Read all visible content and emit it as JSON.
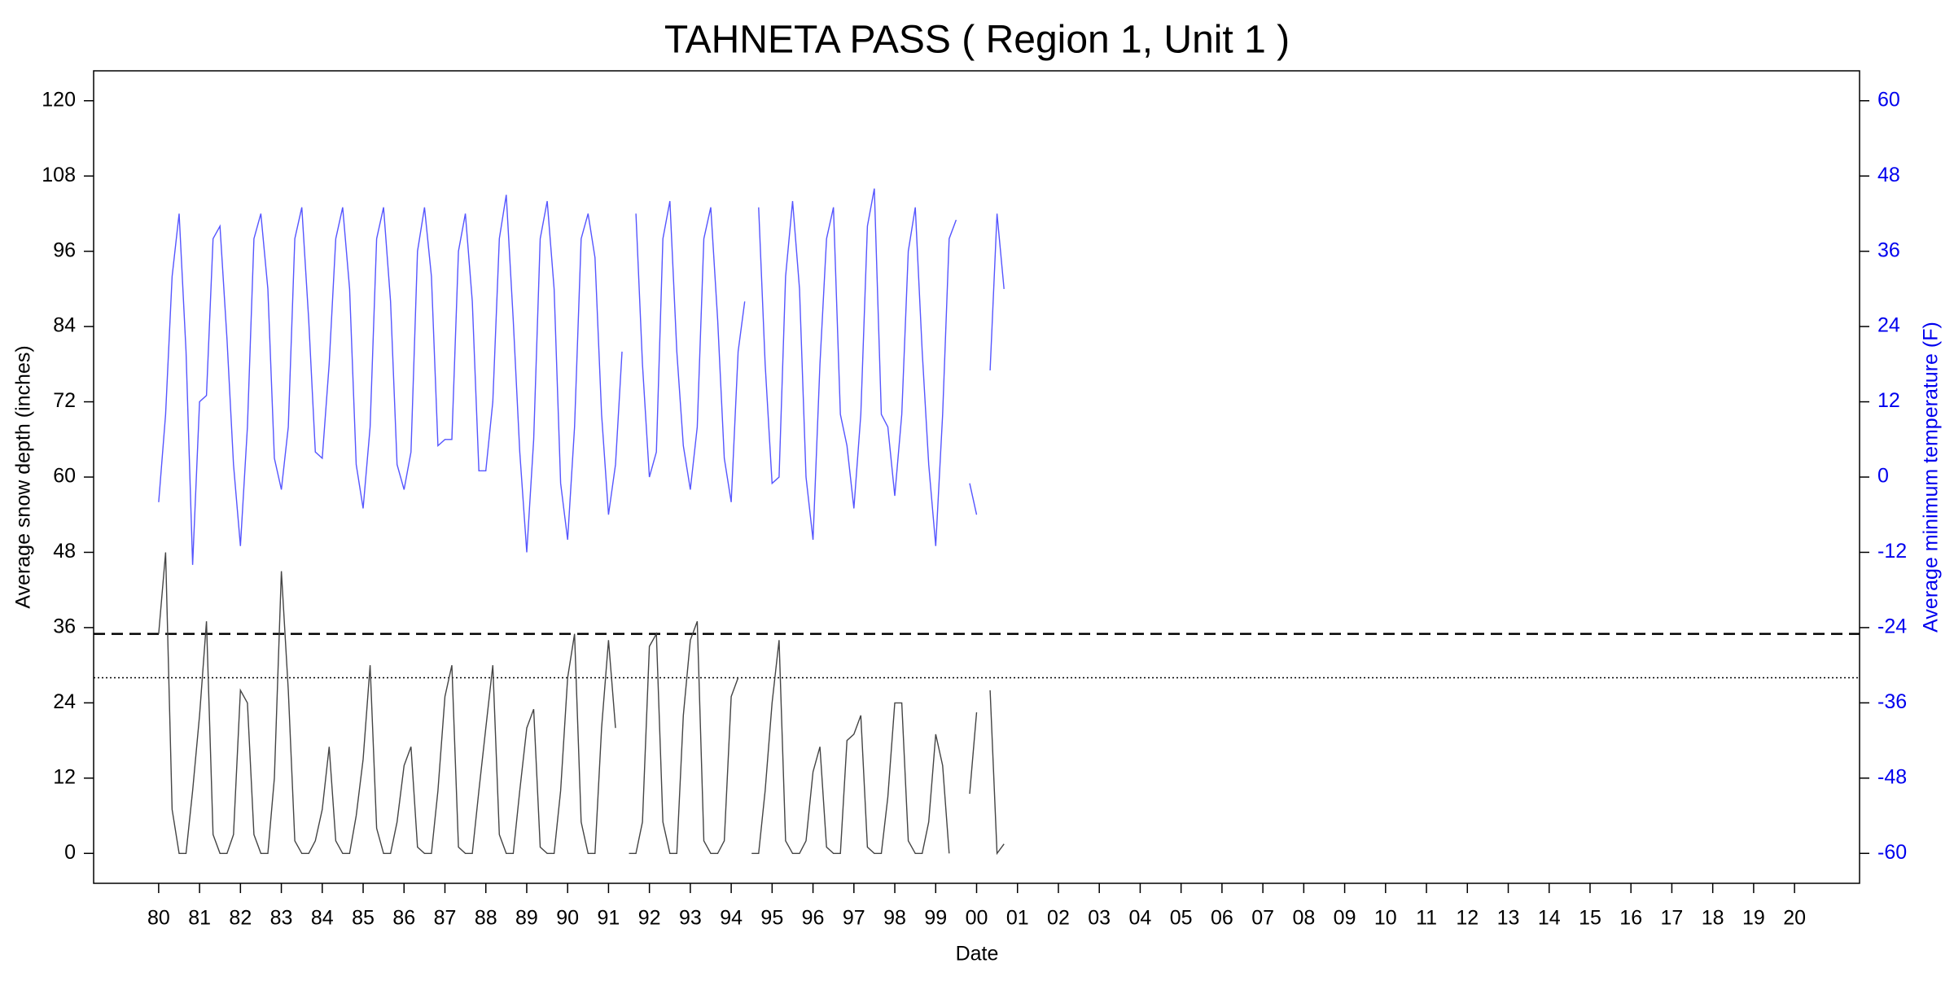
{
  "chart_data": {
    "type": "line",
    "title": "TAHNETA PASS ( Region 1, Unit 1 )",
    "x_label": "Date",
    "y_label": "Average snow depth (inches)",
    "y2_label": "Average minimum temperature (F)",
    "xlim": [
      1978.41,
      2021.59
    ],
    "xticks": [
      {
        "value": 1980,
        "label": "80"
      },
      {
        "value": 1981,
        "label": "81"
      },
      {
        "value": 1982,
        "label": "82"
      },
      {
        "value": 1983,
        "label": "83"
      },
      {
        "value": 1984,
        "label": "84"
      },
      {
        "value": 1985,
        "label": "85"
      },
      {
        "value": 1986,
        "label": "86"
      },
      {
        "value": 1987,
        "label": "87"
      },
      {
        "value": 1988,
        "label": "88"
      },
      {
        "value": 1989,
        "label": "89"
      },
      {
        "value": 1990,
        "label": "90"
      },
      {
        "value": 1991,
        "label": "91"
      },
      {
        "value": 1992,
        "label": "92"
      },
      {
        "value": 1993,
        "label": "93"
      },
      {
        "value": 1994,
        "label": "94"
      },
      {
        "value": 1995,
        "label": "95"
      },
      {
        "value": 1996,
        "label": "96"
      },
      {
        "value": 1997,
        "label": "97"
      },
      {
        "value": 1998,
        "label": "98"
      },
      {
        "value": 1999,
        "label": "99"
      },
      {
        "value": 2000,
        "label": "00"
      },
      {
        "value": 2001,
        "label": "01"
      },
      {
        "value": 2002,
        "label": "02"
      },
      {
        "value": 2003,
        "label": "03"
      },
      {
        "value": 2004,
        "label": "04"
      },
      {
        "value": 2005,
        "label": "05"
      },
      {
        "value": 2006,
        "label": "06"
      },
      {
        "value": 2007,
        "label": "07"
      },
      {
        "value": 2008,
        "label": "08"
      },
      {
        "value": 2009,
        "label": "09"
      },
      {
        "value": 2010,
        "label": "10"
      },
      {
        "value": 2011,
        "label": "11"
      },
      {
        "value": 2012,
        "label": "12"
      },
      {
        "value": 2013,
        "label": "13"
      },
      {
        "value": 2014,
        "label": "14"
      },
      {
        "value": 2015,
        "label": "15"
      },
      {
        "value": 2016,
        "label": "16"
      },
      {
        "value": 2017,
        "label": "17"
      },
      {
        "value": 2018,
        "label": "18"
      },
      {
        "value": 2019,
        "label": "19"
      },
      {
        "value": 2020,
        "label": "20"
      }
    ],
    "ylim": [
      -4.77,
      124.77
    ],
    "yticks": [
      0,
      12,
      24,
      36,
      48,
      60,
      72,
      84,
      96,
      108,
      120
    ],
    "y2lim": [
      -64.77,
      64.77
    ],
    "y2ticks": [
      -60,
      -48,
      -36,
      -24,
      -12,
      0,
      12,
      24,
      36,
      48,
      60
    ],
    "y2_color": "#0000ee",
    "reference_lines": [
      {
        "value": 35,
        "style": "dashed"
      },
      {
        "value": 28,
        "style": "dotted"
      }
    ],
    "x": [
      1980,
      1980.17,
      1980.33,
      1980.5,
      1980.67,
      1980.83,
      1981,
      1981.17,
      1981.33,
      1981.5,
      1981.67,
      1981.83,
      1982,
      1982.17,
      1982.33,
      1982.5,
      1982.67,
      1982.83,
      1983,
      1983.17,
      1983.33,
      1983.5,
      1983.67,
      1983.83,
      1984,
      1984.17,
      1984.33,
      1984.5,
      1984.67,
      1984.83,
      1985,
      1985.17,
      1985.33,
      1985.5,
      1985.67,
      1985.83,
      1986,
      1986.17,
      1986.33,
      1986.5,
      1986.67,
      1986.83,
      1987,
      1987.17,
      1987.33,
      1987.5,
      1987.67,
      1987.83,
      1988,
      1988.17,
      1988.33,
      1988.5,
      1988.67,
      1988.83,
      1989,
      1989.17,
      1989.33,
      1989.5,
      1989.67,
      1989.83,
      1990,
      1990.17,
      1990.33,
      1990.5,
      1990.67,
      1990.83,
      1991,
      1991.17,
      1991.33,
      1991.5,
      1991.67,
      1991.83,
      1992,
      1992.17,
      1992.33,
      1992.5,
      1992.67,
      1992.83,
      1993,
      1993.17,
      1993.33,
      1993.5,
      1993.67,
      1993.83,
      1994,
      1994.17,
      1994.33,
      1994.5,
      1994.67,
      1994.83,
      1995,
      1995.17,
      1995.33,
      1995.5,
      1995.67,
      1995.83,
      1996,
      1996.17,
      1996.33,
      1996.5,
      1996.67,
      1996.83,
      1997,
      1997.17,
      1997.33,
      1997.5,
      1997.67,
      1997.83,
      1998,
      1998.17,
      1998.33,
      1998.5,
      1998.67,
      1998.83,
      1999,
      1999.17,
      1999.33,
      1999.5,
      1999.67,
      1999.83,
      2000,
      2000.17,
      2000.33,
      2000.5,
      2000.67,
      2000.83
    ],
    "series": [
      {
        "name": "Average snow depth",
        "color": "#444444",
        "axis": "y",
        "values": [
          35,
          48,
          7,
          0,
          0,
          10,
          22,
          37,
          3,
          0,
          0,
          3,
          26,
          24,
          3,
          0,
          0,
          12,
          45,
          26,
          2,
          0,
          0,
          2,
          7,
          17,
          2,
          0,
          0,
          6,
          15,
          30,
          4,
          0,
          0,
          5,
          14,
          17,
          1,
          0,
          0,
          10,
          25,
          30,
          1,
          0,
          0,
          10,
          20,
          30,
          3,
          0,
          0,
          10,
          20,
          23,
          1,
          0,
          0,
          10,
          28,
          35,
          5,
          0,
          0,
          20,
          34,
          20,
          null,
          0,
          0,
          5,
          33,
          35,
          5,
          0,
          0,
          22,
          34,
          37,
          2,
          0,
          0,
          2,
          25,
          28,
          null,
          0,
          0,
          10,
          24,
          34,
          2,
          0,
          0,
          2,
          13,
          17,
          1,
          0,
          0,
          18,
          19,
          22,
          1,
          0,
          0,
          9,
          24,
          24,
          2,
          0,
          0,
          5,
          19,
          14,
          0,
          null,
          null,
          9.5,
          22.5,
          null,
          26,
          0,
          1.5,
          null
        ]
      },
      {
        "name": "Average minimum temperature",
        "color": "#5555ff",
        "axis": "y2",
        "values": [
          -4,
          10,
          32,
          42,
          20,
          -14,
          12,
          13,
          38,
          40,
          22,
          2,
          -11,
          8,
          38,
          42,
          30,
          3,
          -2,
          8,
          38,
          43,
          25,
          4,
          3,
          18,
          38,
          43,
          30,
          2,
          -5,
          8,
          38,
          43,
          28,
          2,
          -2,
          4,
          36,
          43,
          32,
          5,
          6,
          6,
          36,
          42,
          28,
          1,
          1,
          12,
          38,
          45,
          25,
          4,
          -12,
          6,
          38,
          44,
          30,
          -1,
          -10,
          8,
          38,
          42,
          35,
          10,
          -6,
          2,
          20,
          null,
          42,
          18,
          0,
          4,
          38,
          44,
          20,
          5,
          -2,
          8,
          38,
          43,
          25,
          3,
          -4,
          20,
          28,
          null,
          43,
          18,
          -1,
          0,
          32,
          44,
          30,
          0,
          -10,
          18,
          38,
          43,
          10,
          5,
          -5,
          10,
          40,
          46,
          10,
          8,
          -3,
          10,
          36,
          43,
          20,
          2,
          -11,
          10,
          38,
          41,
          null,
          -1,
          -6,
          null,
          17,
          42,
          30,
          null
        ]
      }
    ]
  }
}
